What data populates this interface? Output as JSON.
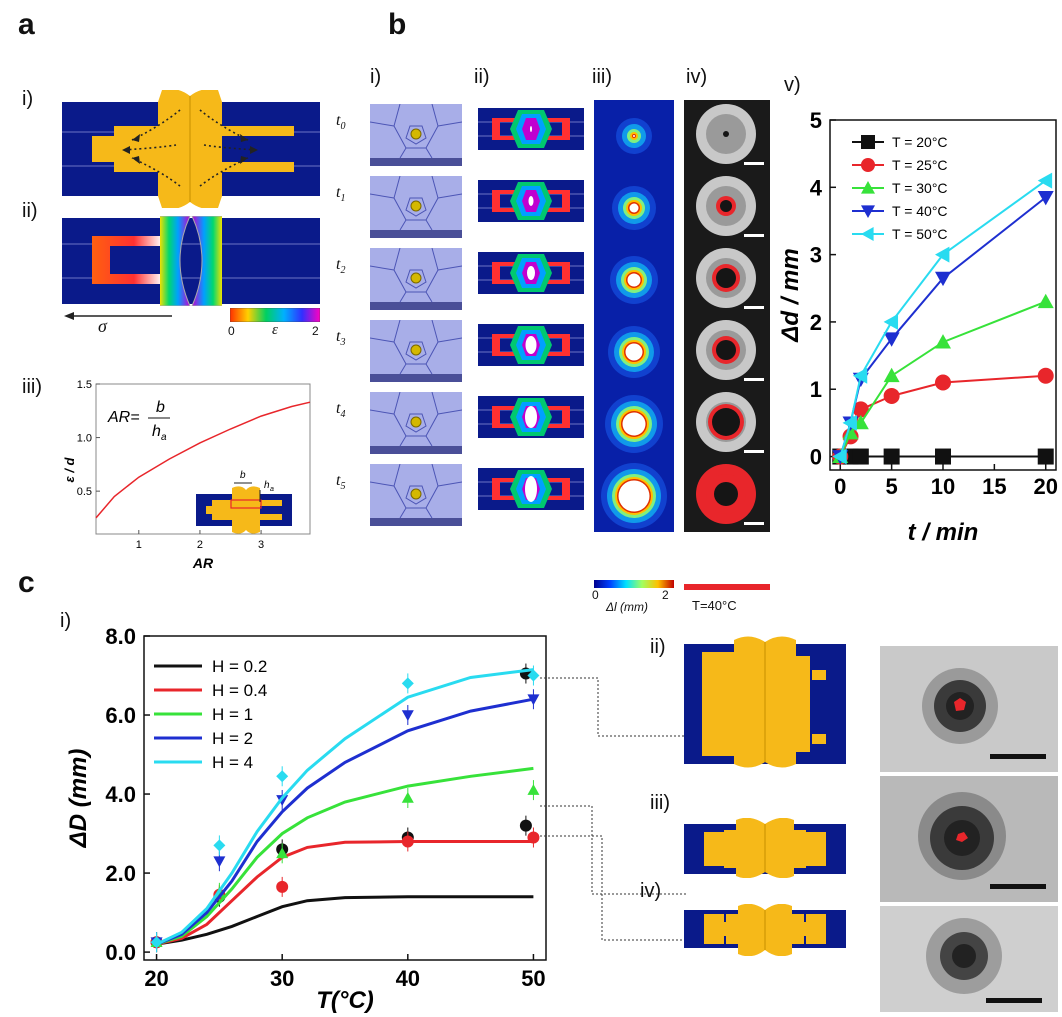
{
  "panels": {
    "a": "a",
    "b": "b",
    "c": "c"
  },
  "panel_a": {
    "labels": [
      "i)",
      "ii)",
      "iii)"
    ],
    "stress_symbol": "σ",
    "strain_symbol": "ε",
    "colorbar_min": "0",
    "colorbar_max": "2",
    "inset_chart": {
      "formula_lhs": "AR=",
      "formula_num": "b",
      "formula_den": "h",
      "formula_den_sub": "a",
      "ylabel": "ε / d",
      "xlabel": "AR",
      "x_ticks": [
        "1",
        "2",
        "3"
      ],
      "y_ticks": [
        "0.5",
        "1.0",
        "1.5"
      ],
      "inset_b": "b",
      "inset_h": "h",
      "inset_h_sub": "a"
    }
  },
  "panel_b": {
    "col_labels": [
      "i)",
      "ii)",
      "iii)",
      "iv)",
      "v)"
    ],
    "time_labels": [
      "t",
      "t",
      "t",
      "t",
      "t",
      "t"
    ],
    "time_subs": [
      "0",
      "1",
      "2",
      "3",
      "4",
      "5"
    ],
    "disp_colorbar_min": "0",
    "disp_colorbar_max": "2",
    "disp_label": "Δl (mm)",
    "temp_label": "T=40°C"
  },
  "panel_c": {
    "labels": [
      "i)",
      "ii)",
      "iii)",
      "iv)"
    ]
  },
  "colors": {
    "navy": "#0a1a8a",
    "gold": "#f6b919",
    "red": "#e8262b",
    "black": "#111111",
    "green": "#37e23a",
    "blue": "#1e2fd0",
    "cyan": "#29dbf0"
  },
  "chart_data": [
    {
      "type": "line",
      "id": "b-v",
      "title": "",
      "xlabel": "t / min",
      "ylabel": "Δd / mm",
      "xlim": [
        -1,
        21
      ],
      "ylim": [
        -0.2,
        5
      ],
      "x_ticks": [
        0,
        5,
        10,
        15,
        20
      ],
      "y_ticks": [
        0,
        1,
        2,
        3,
        4,
        5
      ],
      "x": [
        0,
        1,
        2,
        5,
        10,
        20
      ],
      "series": [
        {
          "name": "T = 20°C",
          "marker": "square",
          "color": "#111111",
          "values": [
            0,
            0,
            0,
            0,
            0,
            0
          ]
        },
        {
          "name": "T = 25°C",
          "marker": "circle",
          "color": "#e8262b",
          "values": [
            0,
            0.3,
            0.7,
            0.9,
            1.1,
            1.2
          ]
        },
        {
          "name": "T = 30°C",
          "marker": "triangle-up",
          "color": "#37e23a",
          "values": [
            0,
            0.35,
            0.5,
            1.2,
            1.7,
            2.3
          ]
        },
        {
          "name": "T = 40°C",
          "marker": "triangle-down",
          "color": "#1e2fd0",
          "values": [
            0,
            0.5,
            1.15,
            1.75,
            2.65,
            3.85
          ]
        },
        {
          "name": "T = 50°C",
          "marker": "triangle-left",
          "color": "#29dbf0",
          "values": [
            0,
            0.5,
            1.2,
            2.0,
            3.0,
            4.1
          ]
        }
      ],
      "legend": "top-left"
    },
    {
      "type": "line",
      "id": "c-i",
      "title": "",
      "xlabel": "T(°C)",
      "ylabel": "ΔD (mm)",
      "xlim": [
        19,
        51
      ],
      "ylim": [
        -0.2,
        8
      ],
      "x_ticks": [
        20,
        30,
        40,
        50
      ],
      "y_ticks": [
        "0.0",
        "2.0",
        "4.0",
        "6.0",
        "8.0"
      ],
      "series": [
        {
          "name": "H = 0.2",
          "color": "#111111",
          "curve_x": [
            20,
            22,
            24,
            26,
            28,
            30,
            32,
            35,
            40,
            45,
            50
          ],
          "curve_y": [
            0.2,
            0.3,
            0.45,
            0.65,
            0.9,
            1.15,
            1.3,
            1.38,
            1.4,
            1.4,
            1.4
          ],
          "points_x": [
            20,
            25,
            30,
            40,
            49.4,
            49.4
          ],
          "points_y": [
            0.25,
            1.4,
            2.6,
            2.9,
            7.05,
            3.2
          ],
          "marker": "circle"
        },
        {
          "name": "H = 0.4",
          "color": "#e8262b",
          "curve_x": [
            20,
            22,
            24,
            26,
            28,
            30,
            32,
            35,
            40,
            45,
            50
          ],
          "curve_y": [
            0.2,
            0.35,
            0.7,
            1.3,
            1.9,
            2.4,
            2.65,
            2.78,
            2.8,
            2.8,
            2.8
          ],
          "points_x": [
            20,
            25,
            30,
            40,
            50
          ],
          "points_y": [
            0.25,
            1.45,
            1.65,
            2.8,
            2.9
          ],
          "marker": "circle"
        },
        {
          "name": "H = 1",
          "color": "#37e23a",
          "curve_x": [
            20,
            22,
            24,
            26,
            28,
            30,
            32,
            35,
            40,
            45,
            50
          ],
          "curve_y": [
            0.2,
            0.4,
            0.9,
            1.6,
            2.4,
            3.0,
            3.4,
            3.8,
            4.2,
            4.45,
            4.65
          ],
          "points_x": [
            20,
            25,
            30,
            40,
            50
          ],
          "points_y": [
            0.25,
            1.5,
            2.5,
            3.9,
            4.1
          ],
          "marker": "triangle-up"
        },
        {
          "name": "H = 2",
          "color": "#1e2fd0",
          "curve_x": [
            20,
            22,
            24,
            26,
            28,
            30,
            32,
            35,
            40,
            45,
            50
          ],
          "curve_y": [
            0.2,
            0.45,
            1.0,
            1.8,
            2.8,
            3.55,
            4.15,
            4.8,
            5.6,
            6.1,
            6.4
          ],
          "points_x": [
            20,
            25,
            30,
            40,
            50
          ],
          "points_y": [
            0.25,
            2.3,
            3.85,
            6.0,
            6.4
          ],
          "marker": "triangle-down"
        },
        {
          "name": "H = 4",
          "color": "#29dbf0",
          "curve_x": [
            20,
            22,
            24,
            26,
            28,
            30,
            32,
            35,
            40,
            45,
            50
          ],
          "curve_y": [
            0.2,
            0.5,
            1.1,
            2.0,
            3.05,
            3.9,
            4.6,
            5.4,
            6.45,
            6.95,
            7.15
          ],
          "points_x": [
            20,
            25,
            30,
            40,
            50
          ],
          "points_y": [
            0.25,
            2.7,
            4.45,
            6.8,
            7.0
          ],
          "marker": "diamond"
        }
      ],
      "legend": "top-left"
    },
    {
      "type": "line",
      "id": "a-iii",
      "title": "",
      "xlabel": "AR",
      "ylabel": "ε / d",
      "xlim": [
        0.3,
        3.8
      ],
      "ylim": [
        0.1,
        1.5
      ],
      "series": [
        {
          "name": "",
          "color": "#e8262b",
          "x": [
            0.3,
            0.6,
            1.0,
            1.5,
            2.0,
            2.5,
            3.0,
            3.5,
            3.8
          ],
          "values": [
            0.25,
            0.45,
            0.63,
            0.8,
            0.95,
            1.08,
            1.2,
            1.29,
            1.33
          ]
        }
      ]
    }
  ]
}
